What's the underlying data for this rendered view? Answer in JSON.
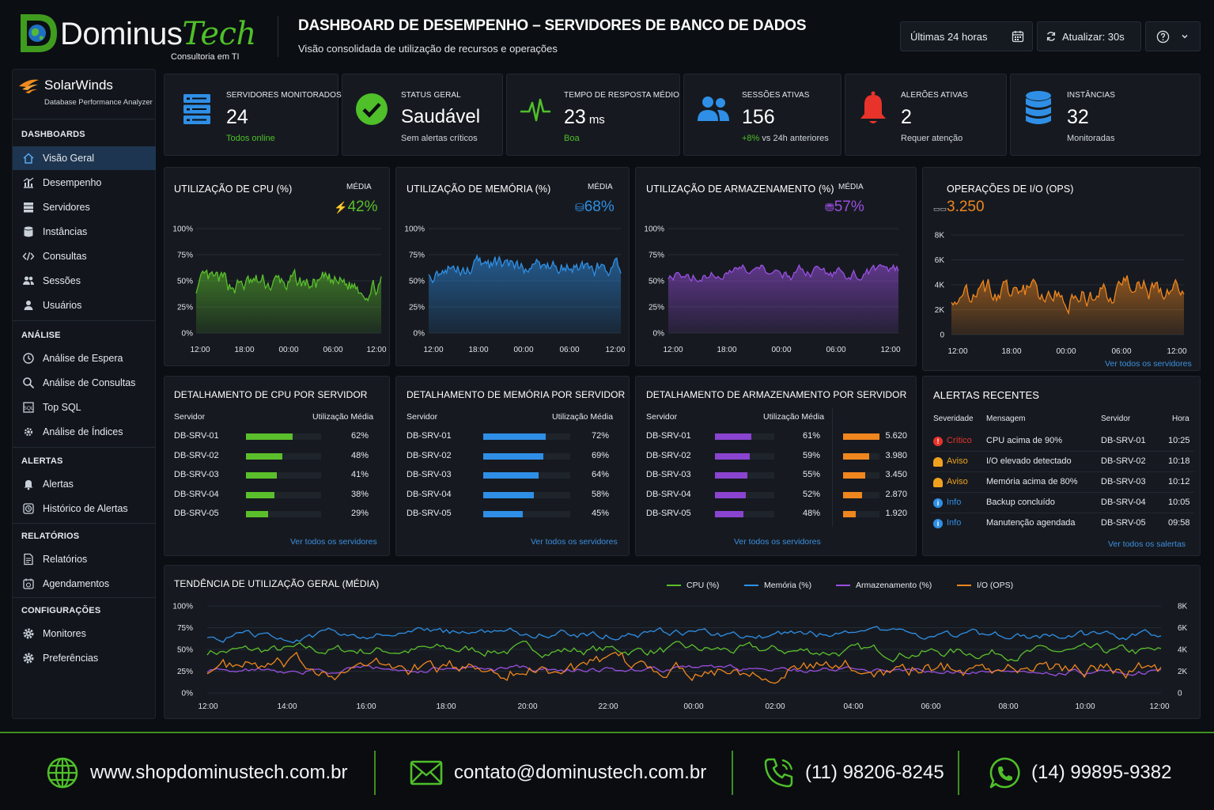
{
  "brand": {
    "name_part1": "Dominus",
    "name_part2": "Tech",
    "tagline": "Consultoria em TI"
  },
  "header": {
    "title": "DASHBOARD DE DESEMPENHO – SERVIDORES DE BANCO DE DADOS",
    "subtitle": "Visão consolidada de utilização de recursos e operações",
    "range_label": "Últimas 24 horas",
    "refresh_label": "Atualizar: 30s"
  },
  "sidebar": {
    "product": "SolarWinds",
    "product_sub": "Database Performance Analyzer",
    "sections": [
      {
        "title": "DASHBOARDS",
        "items": [
          "Visão Geral",
          "Desempenho",
          "Servidores",
          "Instâncias",
          "Consultas",
          "Sessões",
          "Usuários"
        ]
      },
      {
        "title": "ANÁLISE",
        "items": [
          "Análise de Espera",
          "Análise de Consultas",
          "Top SQL",
          "Análise de Índices"
        ]
      },
      {
        "title": "ALERTAS",
        "items": [
          "Alertas",
          "Histórico de Alertas"
        ]
      },
      {
        "title": "RELATÓRIOS",
        "items": [
          "Relatórios",
          "Agendamentos"
        ]
      },
      {
        "title": "CONFIGURAÇÕES",
        "items": [
          "Monitores",
          "Preferências"
        ]
      }
    ],
    "active_item": "Visão Geral"
  },
  "kpis": [
    {
      "title": "SERVIDORES MONITORADOS",
      "value": "24",
      "sub": "Todos online",
      "icon": "server-icon",
      "color": "#2f8fe6"
    },
    {
      "title": "STATUS GERAL",
      "value": "Saudável",
      "sub": "Sem alertas críticos",
      "icon": "check-circle-icon",
      "color": "#4fbf2a"
    },
    {
      "title": "TEMPO DE RESPOSTA MÉDIO",
      "value": "23",
      "unit": "ms",
      "sub": "Boa",
      "icon": "pulse-icon",
      "color": "#4fbf2a"
    },
    {
      "title": "SESSÕES ATIVAS",
      "value": "156",
      "sub_highlight": "+8%",
      "sub": "vs 24h anteriores",
      "icon": "users-icon",
      "color": "#2f8fe6"
    },
    {
      "title": "ALERÕES ATIVAS",
      "value": "2",
      "sub": "Requer atenção",
      "icon": "bell-icon",
      "color": "#e8332b"
    },
    {
      "title": "INSTÂNCIAS",
      "value": "32",
      "sub": "Monitoradas",
      "icon": "database-icon",
      "color": "#2f8fe6"
    }
  ],
  "usage_charts": [
    {
      "title": "UTILIZAÇÃO DE CPU (%)",
      "avg_label": "MÉDIA",
      "avg_value": "42%",
      "color": "#5bbf2c",
      "x_ticks": [
        "12:00",
        "18:00",
        "00:00",
        "06:00",
        "12:00"
      ],
      "y_ticks": [
        "100%",
        "75%",
        "50%",
        "25%",
        "0%"
      ]
    },
    {
      "title": "UTILIZAÇÃO DE MEMÓRIA (%)",
      "avg_label": "MÉDIA",
      "avg_value": "68%",
      "color": "#2f8fe6",
      "x_ticks": [
        "12:00",
        "18:00",
        "00:00",
        "06:00",
        "12:00"
      ],
      "y_ticks": [
        "100%",
        "75%",
        "50%",
        "25%",
        "0%"
      ]
    },
    {
      "title": "UTILIZAÇÃO DE ARMAZENAMENTO (%)",
      "avg_label": "MÉDIA",
      "avg_value": "57%",
      "color": "#9a4fe0",
      "x_ticks": [
        "12:00",
        "18:00",
        "00:00",
        "06:00",
        "12:00"
      ],
      "y_ticks": [
        "100%",
        "75%",
        "50%",
        "25%",
        "0%"
      ]
    },
    {
      "title": "OPERAÇÕES DE I/O (OPS)",
      "avg_value": "3.250",
      "color": "#f0861e",
      "x_ticks": [
        "12:00",
        "18:00",
        "00:00",
        "06:00",
        "12:00"
      ],
      "y_ticks": [
        "8K",
        "6K",
        "4K",
        "2K",
        "0"
      ],
      "link": "Ver todos os servidores"
    }
  ],
  "breakdowns": [
    {
      "title": "DETALHAMENTO DE CPU POR SERVIDOR",
      "col1": "Servidor",
      "col2": "Utilização Média",
      "color": "#5bbf2c",
      "link": "Ver todos os servidores",
      "rows": [
        {
          "server": "DB-SRV-01",
          "value": 62,
          "label": "62%"
        },
        {
          "server": "DB-SRV-02",
          "value": 48,
          "label": "48%"
        },
        {
          "server": "DB-SRV-03",
          "value": 41,
          "label": "41%"
        },
        {
          "server": "DB-SRV-04",
          "value": 38,
          "label": "38%"
        },
        {
          "server": "DB-SRV-05",
          "value": 29,
          "label": "29%"
        }
      ]
    },
    {
      "title": "DETALHAMENTO DE MEMÓRIA POR SERVIDOR",
      "col1": "Servidor",
      "col2": "Utilização Média",
      "color": "#2f8fe6",
      "link": "Ver todos os servidores",
      "rows": [
        {
          "server": "DB-SRV-01",
          "value": 72,
          "label": "72%"
        },
        {
          "server": "DB-SRV-02",
          "value": 69,
          "label": "69%"
        },
        {
          "server": "DB-SRV-03",
          "value": 64,
          "label": "64%"
        },
        {
          "server": "DB-SRV-04",
          "value": 58,
          "label": "58%"
        },
        {
          "server": "DB-SRV-05",
          "value": 45,
          "label": "45%"
        }
      ]
    },
    {
      "title": "DETALHAMENTO DE ARMAZENAMENTO POR SERVIDOR",
      "col1": "Servidor",
      "col2": "Utilização Média",
      "color": "#8a44d0",
      "color2": "#f0861e",
      "link": "Ver todos os servidores",
      "rows": [
        {
          "server": "DB-SRV-01",
          "value": 61,
          "label": "61%",
          "ops": 5620,
          "ops_label": "5.620"
        },
        {
          "server": "DB-SRV-02",
          "value": 59,
          "label": "59%",
          "ops": 3980,
          "ops_label": "3.980"
        },
        {
          "server": "DB-SRV-03",
          "value": 55,
          "label": "55%",
          "ops": 3450,
          "ops_label": "3.450"
        },
        {
          "server": "DB-SRV-04",
          "value": 52,
          "label": "52%",
          "ops": 2870,
          "ops_label": "2.870"
        },
        {
          "server": "DB-SRV-05",
          "value": 48,
          "label": "48%",
          "ops": 1920,
          "ops_label": "1.920"
        }
      ]
    }
  ],
  "alerts": {
    "title": "ALERTAS RECENTES",
    "cols": [
      "Severidade",
      "Mensagem",
      "Servidor",
      "Hora"
    ],
    "rows": [
      {
        "severity": "Crítico",
        "message": "CPU acima de 90%",
        "server": "DB-SRV-01",
        "time": "10:25",
        "color": "#e8332b",
        "icon": "alert-circle-icon"
      },
      {
        "severity": "Aviso",
        "message": "I/O elevado detectado",
        "server": "DB-SRV-02",
        "time": "10:18",
        "color": "#f0a21e",
        "icon": "bell-icon"
      },
      {
        "severity": "Aviso",
        "message": "Memória acima de 80%",
        "server": "DB-SRV-03",
        "time": "10:12",
        "color": "#f0a21e",
        "icon": "bell-icon"
      },
      {
        "severity": "Info",
        "message": "Backup concluído",
        "server": "DB-SRV-04",
        "time": "10:05",
        "color": "#2f8fe6",
        "icon": "info-icon"
      },
      {
        "severity": "Info",
        "message": "Manutenção agendada",
        "server": "DB-SRV-05",
        "time": "09:58",
        "color": "#2f8fe6",
        "icon": "info-icon"
      }
    ],
    "link": "Ver todos os salertas"
  },
  "trend": {
    "title": "TENDÊNCIA DE UTILIZAÇÃO GERAL (MÉDIA)",
    "legend": [
      {
        "name": "CPU (%)",
        "color": "#5bbf2c"
      },
      {
        "name": "Memória (%)",
        "color": "#2f8fe6"
      },
      {
        "name": "Armazenamento (%)",
        "color": "#9a4fe0"
      },
      {
        "name": "I/O (OPS)",
        "color": "#f0861e"
      }
    ],
    "x_ticks": [
      "12:00",
      "14:00",
      "16:00",
      "18:00",
      "20:00",
      "22:00",
      "00:00",
      "02:00",
      "04:00",
      "06:00",
      "08:00",
      "10:00",
      "12:00"
    ],
    "y_ticks_left": [
      "100%",
      "75%",
      "50%",
      "25%",
      "0%"
    ],
    "y_ticks_right": [
      "8K",
      "6K",
      "4K",
      "2K",
      "0"
    ]
  },
  "footer": {
    "website": "www.shopdominustech.com.br",
    "email": "contato@dominustech.com.br",
    "phone": "(11) 98206-8245",
    "whatsapp": "(14) 99895-9382"
  }
}
